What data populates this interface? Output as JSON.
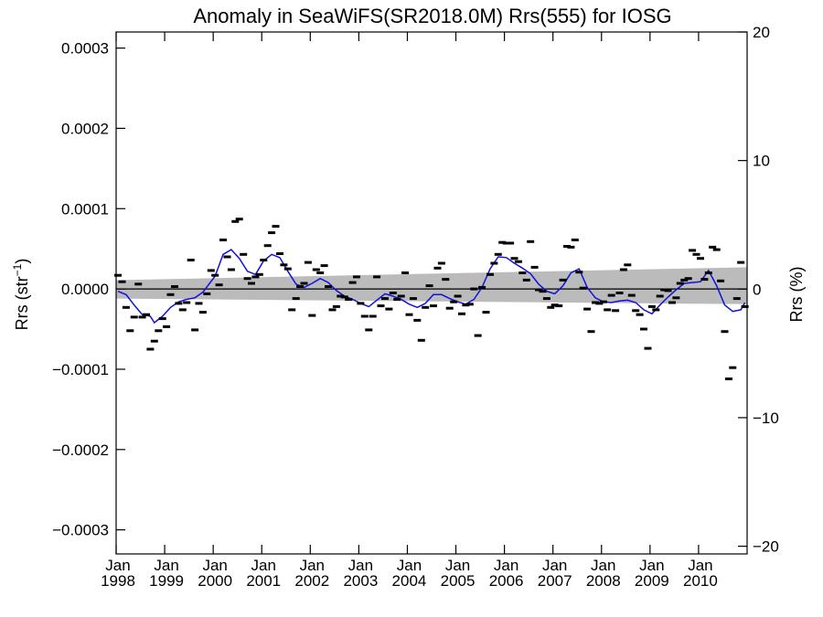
{
  "chart_data": {
    "type": "scatter",
    "title": "Anomaly in SeaWiFS(SR2018.0M) Rrs(555) for IOSG",
    "ylabel_base": "Rrs (str",
    "ylabel_sup": "−1",
    "ylabel_end": ")",
    "y2label": "Rrs (%)",
    "xlim": [
      "1998-01-01",
      "2011-01-01"
    ],
    "ylim": [
      -0.00033,
      0.00032
    ],
    "y2lim": [
      -20.6,
      20.0
    ],
    "yticks": [
      {
        "value": 0.0003,
        "label": "0.0003"
      },
      {
        "value": 0.0002,
        "label": "0.0002"
      },
      {
        "value": 0.0001,
        "label": "0.0001"
      },
      {
        "value": 0.0,
        "label": "0.0000"
      },
      {
        "value": -0.0001,
        "label": "−0.0001"
      },
      {
        "value": -0.0002,
        "label": "−0.0002"
      },
      {
        "value": -0.0003,
        "label": "−0.0003"
      }
    ],
    "y2ticks": [
      {
        "value": 20,
        "label": "20"
      },
      {
        "value": 10,
        "label": "10"
      },
      {
        "value": 0,
        "label": "0"
      },
      {
        "value": -10,
        "label": "−10"
      },
      {
        "value": -20,
        "label": "−20"
      }
    ],
    "xticks": [
      {
        "year": 1998,
        "month": "Jan",
        "label": "1998"
      },
      {
        "year": 1999,
        "month": "Jan",
        "label": "1999"
      },
      {
        "year": 2000,
        "month": "Jan",
        "label": "2000"
      },
      {
        "year": 2001,
        "month": "Jan",
        "label": "2001"
      },
      {
        "year": 2002,
        "month": "Jan",
        "label": "2002"
      },
      {
        "year": 2003,
        "month": "Jan",
        "label": "2003"
      },
      {
        "year": 2004,
        "month": "Jan",
        "label": "2004"
      },
      {
        "year": 2005,
        "month": "Jan",
        "label": "2005"
      },
      {
        "year": 2006,
        "month": "Jan",
        "label": "2006"
      },
      {
        "year": 2007,
        "month": "Jan",
        "label": "2007"
      },
      {
        "year": 2008,
        "month": "Jan",
        "label": "2008"
      },
      {
        "year": 2009,
        "month": "Jan",
        "label": "2009"
      },
      {
        "year": 2010,
        "month": "Jan",
        "label": "2010"
      }
    ],
    "colors": {
      "smooth": "#1010dd",
      "band": "#bbbbbb",
      "points": "#000000",
      "zero": "#000000"
    },
    "grid": false,
    "points": [
      [
        "1998-01",
        1.7e-05
      ],
      [
        "1998-02",
        9e-06
      ],
      [
        "1998-03",
        -2.3e-05
      ],
      [
        "1998-04",
        -5.2e-05
      ],
      [
        "1998-05",
        -3.5e-05
      ],
      [
        "1998-06",
        6e-06
      ],
      [
        "1998-07",
        -3.5e-05
      ],
      [
        "1998-08",
        -3.2e-05
      ],
      [
        "1998-09",
        -7.5e-05
      ],
      [
        "1998-10",
        -6.5e-05
      ],
      [
        "1998-11",
        -5.2e-05
      ],
      [
        "1998-12",
        -3.7e-05
      ],
      [
        "1999-01",
        -4.7e-05
      ],
      [
        "1999-02",
        -7e-06
      ],
      [
        "1999-03",
        3e-06
      ],
      [
        "1999-04",
        -1.8e-05
      ],
      [
        "1999-05",
        -2.6e-05
      ],
      [
        "1999-06",
        -1.7e-05
      ],
      [
        "1999-07",
        3.6e-05
      ],
      [
        "1999-08",
        -5.1e-05
      ],
      [
        "1999-09",
        -1.8e-05
      ],
      [
        "1999-10",
        -2.9e-05
      ],
      [
        "1999-11",
        -6e-06
      ],
      [
        "1999-12",
        2.3e-05
      ],
      [
        "2000-01",
        1.7e-05
      ],
      [
        "2000-02",
        5e-06
      ],
      [
        "2000-03",
        6.1e-05
      ],
      [
        "2000-04",
        4e-05
      ],
      [
        "2000-05",
        2.4e-05
      ],
      [
        "2000-06",
        8.4e-05
      ],
      [
        "2000-07",
        8.7e-05
      ],
      [
        "2000-08",
        4.3e-05
      ],
      [
        "2000-09",
        1.3e-05
      ],
      [
        "2000-10",
        7e-06
      ],
      [
        "2000-11",
        1.5e-05
      ],
      [
        "2000-12",
        1.8e-05
      ],
      [
        "2001-01",
        3.6e-05
      ],
      [
        "2001-02",
        5.4e-05
      ],
      [
        "2001-03",
        7e-05
      ],
      [
        "2001-04",
        7.8e-05
      ],
      [
        "2001-05",
        4.4e-05
      ],
      [
        "2001-06",
        3e-05
      ],
      [
        "2001-07",
        2.5e-05
      ],
      [
        "2001-08",
        -2.6e-05
      ],
      [
        "2001-09",
        -1.2e-05
      ],
      [
        "2001-10",
        3e-06
      ],
      [
        "2001-11",
        7e-06
      ],
      [
        "2001-12",
        3.3e-05
      ],
      [
        "2002-01",
        -3.3e-05
      ],
      [
        "2002-02",
        2.4e-05
      ],
      [
        "2002-03",
        2e-05
      ],
      [
        "2002-04",
        2.9e-05
      ],
      [
        "2002-05",
        3e-06
      ],
      [
        "2002-06",
        -2.6e-05
      ],
      [
        "2002-07",
        -2.2e-05
      ],
      [
        "2002-08",
        -9e-06
      ],
      [
        "2002-09",
        -1e-05
      ],
      [
        "2002-10",
        -1.3e-05
      ],
      [
        "2002-11",
        8e-06
      ],
      [
        "2002-12",
        1.5e-05
      ],
      [
        "2003-01",
        -1.8e-05
      ],
      [
        "2003-02",
        -3.4e-05
      ],
      [
        "2003-03",
        -5.1e-05
      ],
      [
        "2003-04",
        -3.4e-05
      ],
      [
        "2003-05",
        1.5e-05
      ],
      [
        "2003-06",
        -2.1e-05
      ],
      [
        "2003-07",
        -1.2e-05
      ],
      [
        "2003-08",
        -2.5e-05
      ],
      [
        "2003-09",
        -5e-06
      ],
      [
        "2003-10",
        -1.3e-05
      ],
      [
        "2003-11",
        -9e-06
      ],
      [
        "2003-12",
        2e-05
      ],
      [
        "2004-01",
        -3.2e-05
      ],
      [
        "2004-02",
        -1.2e-05
      ],
      [
        "2004-03",
        -3.9e-05
      ],
      [
        "2004-04",
        -6.4e-05
      ],
      [
        "2004-05",
        -2.3e-05
      ],
      [
        "2004-06",
        4e-06
      ],
      [
        "2004-07",
        -2.1e-05
      ],
      [
        "2004-08",
        2.6e-05
      ],
      [
        "2004-09",
        3.2e-05
      ],
      [
        "2004-10",
        1.2e-05
      ],
      [
        "2004-11",
        -2.4e-05
      ],
      [
        "2004-12",
        -1.6e-05
      ],
      [
        "2005-01",
        -9e-06
      ],
      [
        "2005-02",
        -3.1e-05
      ],
      [
        "2005-03",
        -2e-05
      ],
      [
        "2005-04",
        -1.9e-05
      ],
      [
        "2005-05",
        0.0
      ],
      [
        "2005-06",
        -5.8e-05
      ],
      [
        "2005-07",
        2e-06
      ],
      [
        "2005-08",
        -2.9e-05
      ],
      [
        "2005-09",
        1.8e-05
      ],
      [
        "2005-10",
        3.2e-05
      ],
      [
        "2005-11",
        4.3e-05
      ],
      [
        "2005-12",
        5.8e-05
      ],
      [
        "2006-01",
        5.7e-05
      ],
      [
        "2006-02",
        5.7e-05
      ],
      [
        "2006-03",
        3.8e-05
      ],
      [
        "2006-04",
        3.4e-05
      ],
      [
        "2006-05",
        2e-05
      ],
      [
        "2006-06",
        1.1e-05
      ],
      [
        "2006-07",
        5.9e-05
      ],
      [
        "2006-08",
        2.7e-05
      ],
      [
        "2006-09",
        -1e-06
      ],
      [
        "2006-10",
        -3e-06
      ],
      [
        "2006-11",
        -1.2e-05
      ],
      [
        "2006-12",
        -2.3e-05
      ],
      [
        "2007-01",
        -2e-05
      ],
      [
        "2007-02",
        -2.1e-05
      ],
      [
        "2007-03",
        1.1e-05
      ],
      [
        "2007-04",
        5.3e-05
      ],
      [
        "2007-05",
        5.2e-05
      ],
      [
        "2007-06",
        6.1e-05
      ],
      [
        "2007-07",
        2.1e-05
      ],
      [
        "2007-08",
        1e-06
      ],
      [
        "2007-09",
        -2.5e-05
      ],
      [
        "2007-10",
        -5.3e-05
      ],
      [
        "2007-11",
        -1.7e-05
      ],
      [
        "2007-12",
        -1.8e-05
      ],
      [
        "2008-01",
        -1.6e-05
      ],
      [
        "2008-02",
        -2.6e-05
      ],
      [
        "2008-03",
        -8e-06
      ],
      [
        "2008-04",
        -2.7e-05
      ],
      [
        "2008-05",
        -5e-06
      ],
      [
        "2008-06",
        2.4e-05
      ],
      [
        "2008-07",
        3e-05
      ],
      [
        "2008-08",
        -8e-06
      ],
      [
        "2008-09",
        -2.7e-05
      ],
      [
        "2008-10",
        -3.2e-05
      ],
      [
        "2008-11",
        -5e-05
      ],
      [
        "2008-12",
        -7.4e-05
      ],
      [
        "2009-01",
        -2.2e-05
      ],
      [
        "2009-02",
        -2.6e-05
      ],
      [
        "2009-03",
        -9e-06
      ],
      [
        "2009-04",
        -1e-06
      ],
      [
        "2009-05",
        -2e-06
      ],
      [
        "2009-06",
        -1.7e-05
      ],
      [
        "2009-07",
        -1.1e-05
      ],
      [
        "2009-08",
        7e-06
      ],
      [
        "2009-09",
        1.1e-05
      ],
      [
        "2009-10",
        1.3e-05
      ],
      [
        "2009-11",
        4.8e-05
      ],
      [
        "2009-12",
        4.3e-05
      ],
      [
        "2010-01",
        3.8e-05
      ],
      [
        "2010-02",
        1.2e-05
      ],
      [
        "2010-03",
        2e-05
      ],
      [
        "2010-04",
        5.2e-05
      ],
      [
        "2010-05",
        4.9e-05
      ],
      [
        "2010-06",
        1e-05
      ],
      [
        "2010-07",
        -5.3e-05
      ],
      [
        "2010-08",
        -0.000112
      ],
      [
        "2010-09",
        -9.8e-05
      ],
      [
        "2010-10",
        -1.2e-05
      ],
      [
        "2010-11",
        3.3e-05
      ],
      [
        "2010-12",
        -2.2e-05
      ]
    ],
    "smooth": [
      [
        "1998-01",
        -3e-06
      ],
      [
        "1998-03",
        -7e-06
      ],
      [
        "1998-05",
        -2e-05
      ],
      [
        "1998-07",
        -3.2e-05
      ],
      [
        "1998-09",
        -3.4e-05
      ],
      [
        "1998-10",
        -4.2e-05
      ],
      [
        "1998-12",
        -3.4e-05
      ],
      [
        "1999-02",
        -2.3e-05
      ],
      [
        "1999-04",
        -1.6e-05
      ],
      [
        "1999-06",
        -1.3e-05
      ],
      [
        "1999-08",
        -1.1e-05
      ],
      [
        "1999-10",
        -4e-06
      ],
      [
        "2000-01",
        1.6e-05
      ],
      [
        "2000-03",
        4.3e-05
      ],
      [
        "2000-05",
        4.9e-05
      ],
      [
        "2000-07",
        3.8e-05
      ],
      [
        "2000-09",
        2.2e-05
      ],
      [
        "2000-11",
        1.8e-05
      ],
      [
        "2001-01",
        3.5e-05
      ],
      [
        "2001-03",
        4.3e-05
      ],
      [
        "2001-05",
        3.9e-05
      ],
      [
        "2001-07",
        2.2e-05
      ],
      [
        "2001-09",
        6e-06
      ],
      [
        "2001-11",
        2e-06
      ],
      [
        "2002-01",
        7e-06
      ],
      [
        "2002-03",
        1.3e-05
      ],
      [
        "2002-05",
        8e-06
      ],
      [
        "2002-07",
        -2e-06
      ],
      [
        "2002-09",
        -9e-06
      ],
      [
        "2002-11",
        -1.3e-05
      ],
      [
        "2003-01",
        -1.8e-05
      ],
      [
        "2003-03",
        -2.2e-05
      ],
      [
        "2003-05",
        -1.4e-05
      ],
      [
        "2003-07",
        -6e-06
      ],
      [
        "2003-09",
        -9e-06
      ],
      [
        "2003-11",
        -1.3e-05
      ],
      [
        "2004-01",
        -1.9e-05
      ],
      [
        "2004-03",
        -2.3e-05
      ],
      [
        "2004-05",
        -1.8e-05
      ],
      [
        "2004-07",
        -7e-06
      ],
      [
        "2004-09",
        -7e-06
      ],
      [
        "2004-11",
        -1.2e-05
      ],
      [
        "2005-01",
        -1.6e-05
      ],
      [
        "2005-03",
        -1.9e-05
      ],
      [
        "2005-05",
        -1.3e-05
      ],
      [
        "2005-07",
        2e-06
      ],
      [
        "2005-09",
        2.5e-05
      ],
      [
        "2005-11",
        4e-05
      ],
      [
        "2006-01",
        3.9e-05
      ],
      [
        "2006-03",
        3.2e-05
      ],
      [
        "2006-05",
        2.6e-05
      ],
      [
        "2006-07",
        1.9e-05
      ],
      [
        "2006-09",
        6e-06
      ],
      [
        "2006-11",
        -3e-06
      ],
      [
        "2007-01",
        -6e-06
      ],
      [
        "2007-03",
        4e-06
      ],
      [
        "2007-05",
        2e-05
      ],
      [
        "2007-07",
        2.5e-05
      ],
      [
        "2007-09",
        2e-06
      ],
      [
        "2007-11",
        -1.1e-05
      ],
      [
        "2008-01",
        -1.6e-05
      ],
      [
        "2008-03",
        -1.7e-05
      ],
      [
        "2008-05",
        -1.5e-05
      ],
      [
        "2008-07",
        -1.4e-05
      ],
      [
        "2008-09",
        -1.7e-05
      ],
      [
        "2008-11",
        -2.6e-05
      ],
      [
        "2009-01",
        -3.1e-05
      ],
      [
        "2009-03",
        -2e-05
      ],
      [
        "2009-05",
        -1e-05
      ],
      [
        "2009-07",
        -1e-06
      ],
      [
        "2009-09",
        7e-06
      ],
      [
        "2009-11",
        8e-06
      ],
      [
        "2010-01",
        9e-06
      ],
      [
        "2010-03",
        2.3e-05
      ],
      [
        "2010-05",
        4e-06
      ],
      [
        "2010-07",
        -2e-05
      ],
      [
        "2010-09",
        -2.8e-05
      ],
      [
        "2010-11",
        -2.6e-05
      ],
      [
        "2010-12",
        -1.7e-05
      ]
    ],
    "trend_band": {
      "start": {
        "date": "1998-01-01",
        "low": -1.2e-05,
        "high": 1.1e-05
      },
      "end": {
        "date": "2011-01-01",
        "low": -1.9e-05,
        "high": 2.7e-05
      }
    },
    "zero_line": 0
  }
}
